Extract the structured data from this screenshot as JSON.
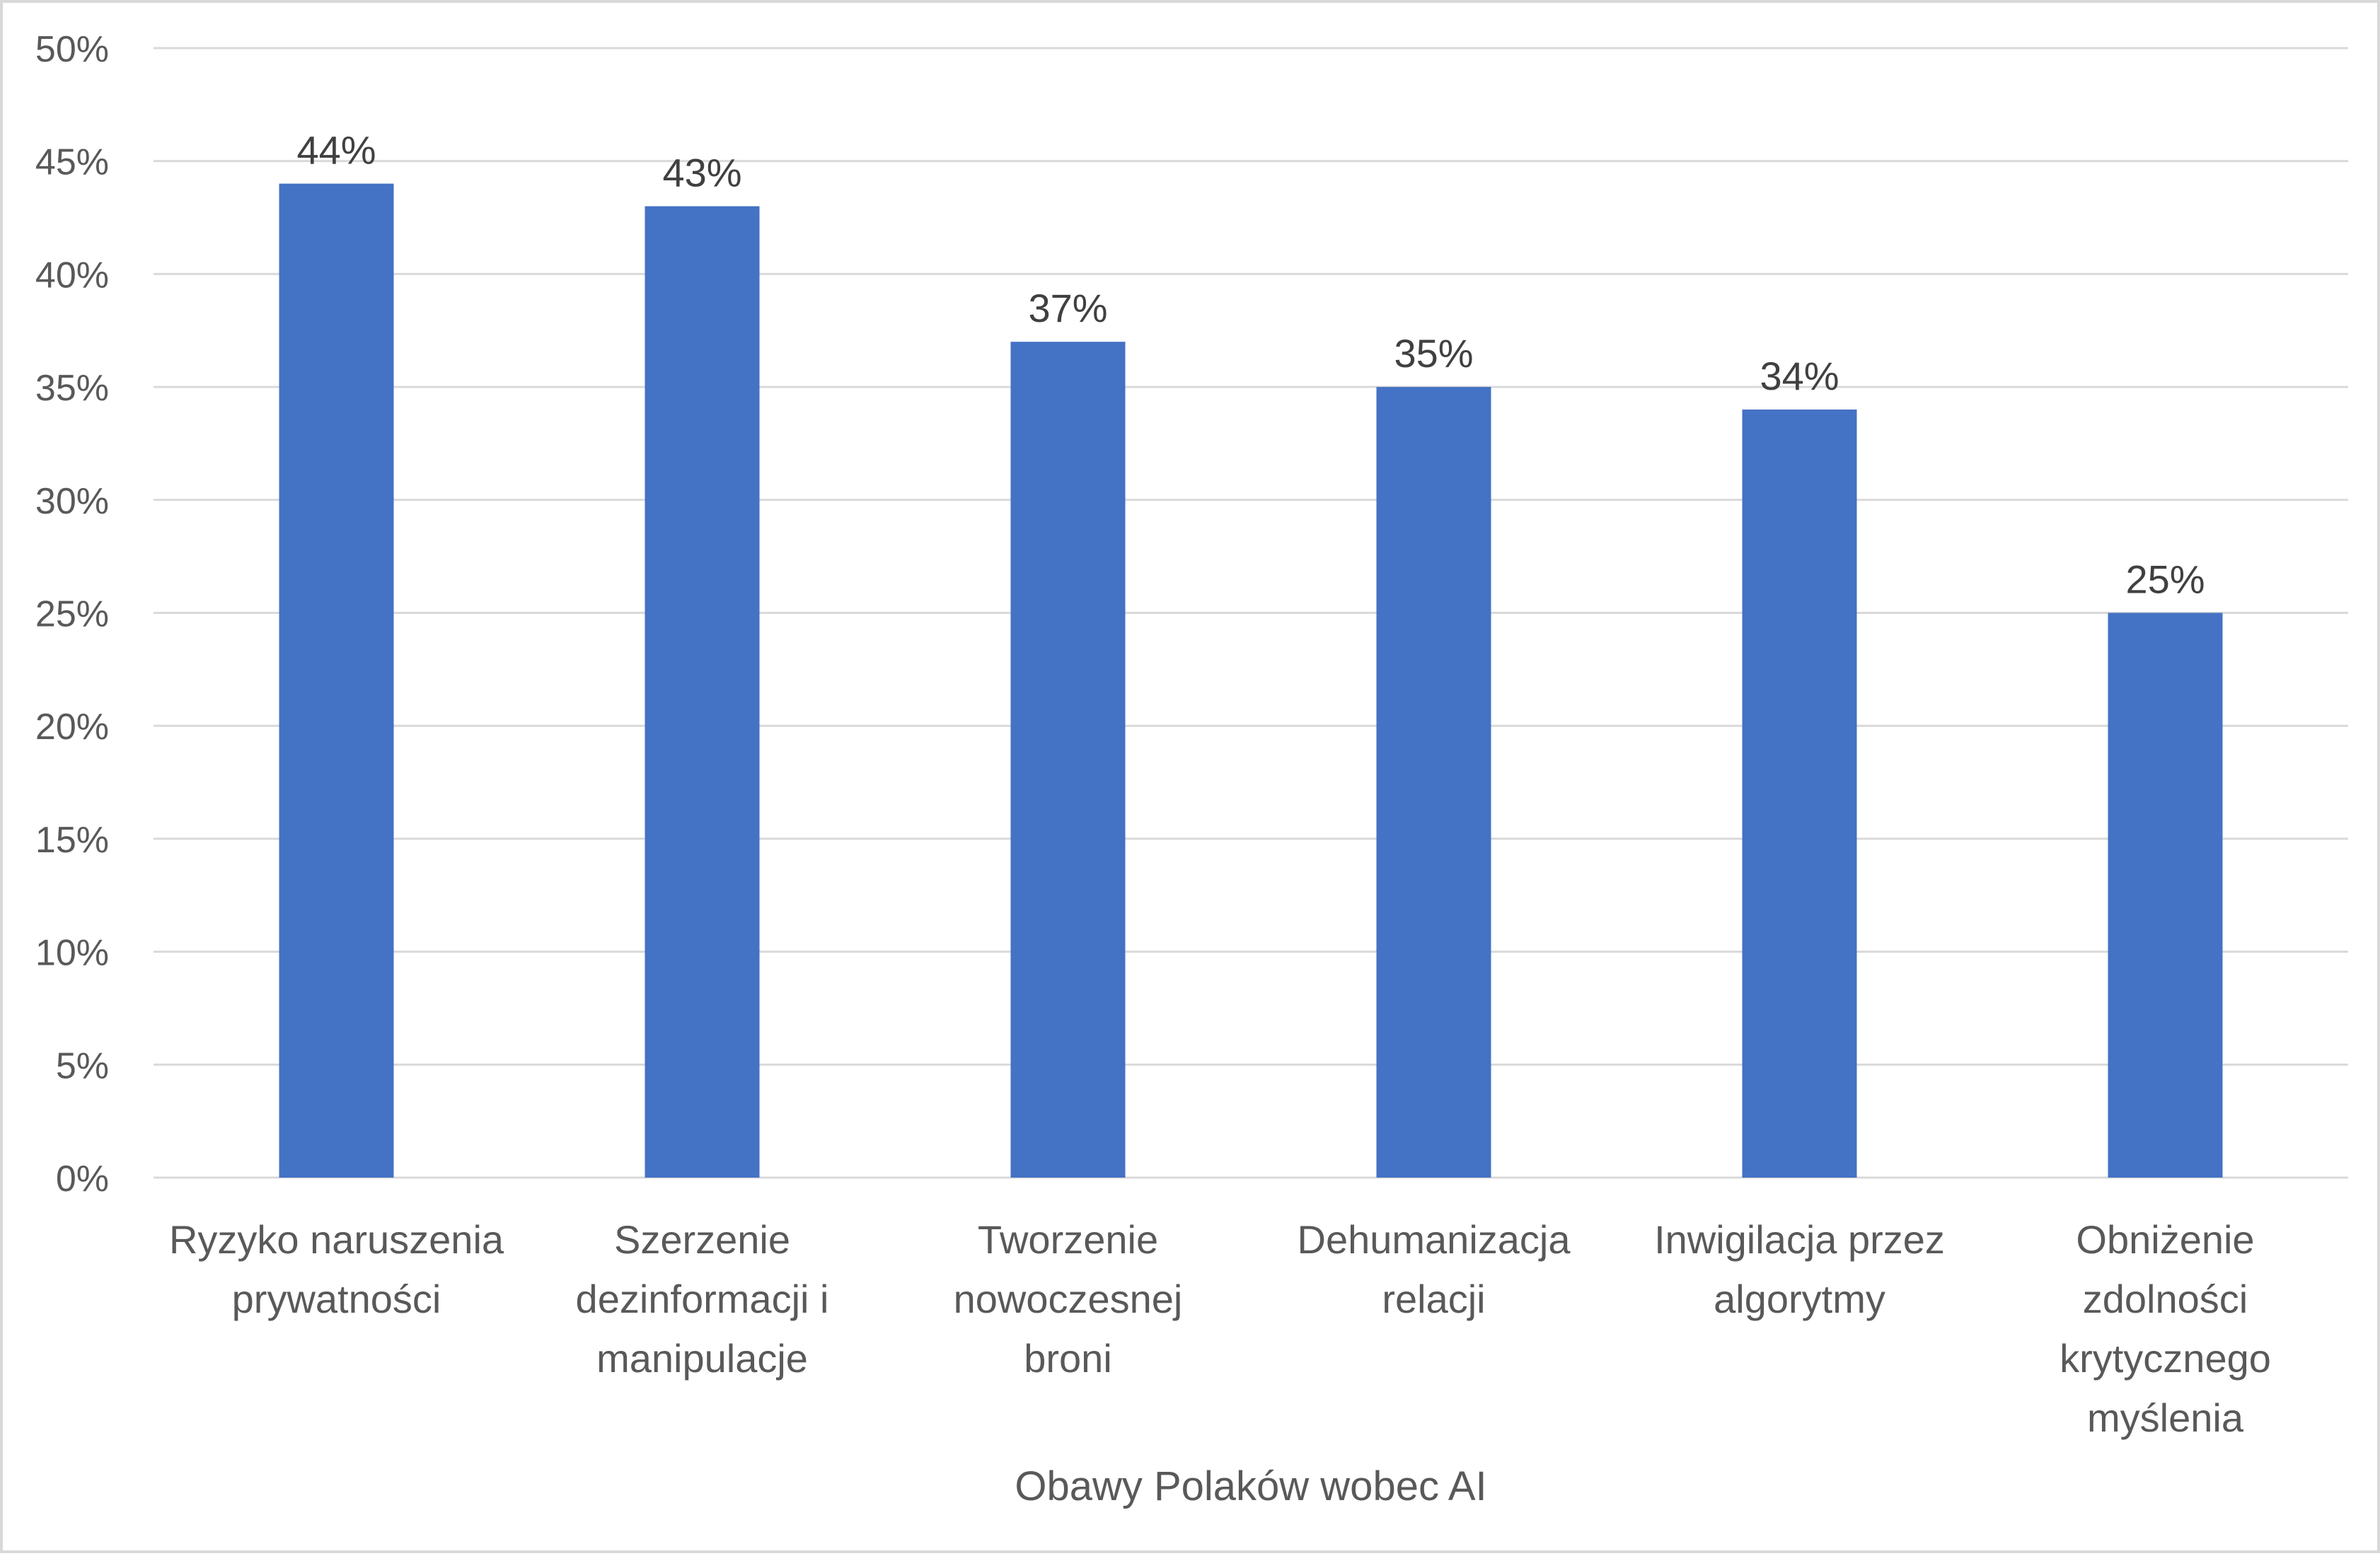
{
  "chart_data": {
    "type": "bar",
    "categories": [
      [
        "Ryzyko naruszenia",
        "prywatności"
      ],
      [
        "Szerzenie",
        "dezinformacji i",
        "manipulacje"
      ],
      [
        "Tworzenie",
        "nowoczesnej",
        "broni"
      ],
      [
        "Dehumanizacja",
        "relacji"
      ],
      [
        "Inwigilacja przez",
        "algorytmy"
      ],
      [
        "Obniżenie",
        "zdolności",
        "krytycznego",
        "myślenia"
      ]
    ],
    "values": [
      44,
      43,
      37,
      35,
      34,
      25
    ],
    "data_labels": [
      "44%",
      "43%",
      "37%",
      "35%",
      "34%",
      "25%"
    ],
    "title": "",
    "xlabel": "Obawy Polaków wobec AI",
    "ylabel": "",
    "ylim": [
      0,
      50
    ],
    "yticks": [
      0,
      5,
      10,
      15,
      20,
      25,
      30,
      35,
      40,
      45,
      50
    ],
    "ytick_labels": [
      "0%",
      "5%",
      "10%",
      "15%",
      "20%",
      "25%",
      "30%",
      "35%",
      "40%",
      "45%",
      "50%"
    ],
    "grid": true,
    "legend": "none",
    "colors": {
      "bar": "#4472C4",
      "grid": "#d9d9d9",
      "text": "#595959"
    }
  }
}
